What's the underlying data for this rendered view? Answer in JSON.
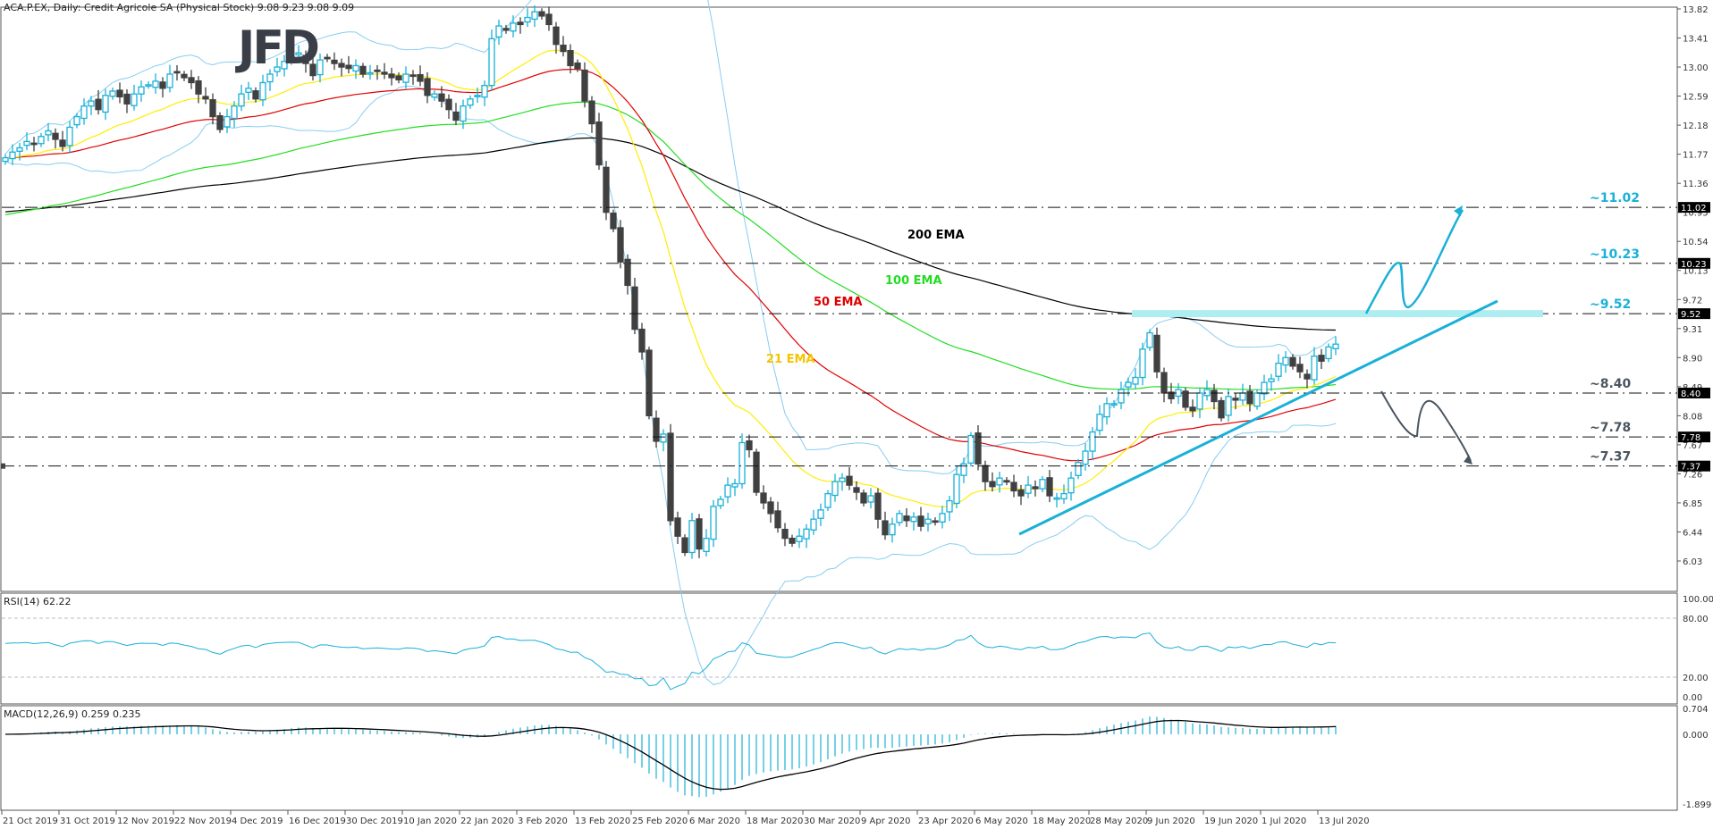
{
  "header": {
    "symbol_line": "ACA.P.EX, Daily:  Credit Agricole SA (Physical Stock)  9.08 9.23 9.08 9.09",
    "rsi_label": "RSI(14) 62.22",
    "macd_label": "MACD(12,26,9) 0.259 0.235",
    "logo": "JFD"
  },
  "colors": {
    "bull": "#1ab0d8",
    "bear": "#404040",
    "ema21": "#ffee00",
    "ema50": "#e00000",
    "ema100": "#22dd22",
    "ema200": "#000000",
    "bollinger": "#87cdf0",
    "annotation_up": "#1ab0d8",
    "annotation_down": "#4a5560",
    "zone": "#aeeef0"
  },
  "chart_data": {
    "type": "candlestick",
    "title": "ACA.P.EX, Daily: Credit Agricole SA (Physical Stock)",
    "ohlc_last": {
      "open": 9.08,
      "high": 9.23,
      "low": 9.08,
      "close": 9.09
    },
    "price_axis": {
      "ticks": [
        13.82,
        13.41,
        13.0,
        12.59,
        12.18,
        11.77,
        11.36,
        10.95,
        10.54,
        10.13,
        9.72,
        9.31,
        8.9,
        8.49,
        8.08,
        7.67,
        7.26,
        6.85,
        6.44,
        6.03
      ],
      "range": [
        5.75,
        13.95
      ]
    },
    "date_axis": [
      "21 Oct 2019",
      "31 Oct 2019",
      "12 Nov 2019",
      "22 Nov 2019",
      "4 Dec 2019",
      "16 Dec 2019",
      "30 Dec 2019",
      "10 Jan 2020",
      "22 Jan 2020",
      "3 Feb 2020",
      "13 Feb 2020",
      "25 Feb 2020",
      "6 Mar 2020",
      "18 Mar 2020",
      "30 Mar 2020",
      "9 Apr 2020",
      "23 Apr 2020",
      "6 May 2020",
      "18 May 2020",
      "28 May 2020",
      "9 Jun 2020",
      "19 Jun 2020",
      "1 Jul 2020",
      "13 Jul 2020"
    ],
    "closes": [
      11.72,
      11.8,
      11.86,
      11.95,
      11.92,
      12.02,
      12.1,
      11.98,
      11.88,
      12.15,
      12.3,
      12.45,
      12.52,
      12.4,
      12.6,
      12.66,
      12.58,
      12.48,
      12.62,
      12.72,
      12.75,
      12.8,
      12.7,
      12.9,
      12.92,
      12.85,
      12.78,
      12.62,
      12.55,
      12.3,
      12.12,
      12.3,
      12.45,
      12.62,
      12.7,
      12.55,
      12.78,
      12.9,
      13.0,
      13.08,
      13.15,
      13.2,
      13.05,
      12.88,
      13.1,
      13.12,
      13.05,
      13.0,
      12.98,
      13.02,
      12.9,
      12.92,
      12.95,
      12.9,
      12.85,
      12.82,
      12.9,
      12.88,
      12.8,
      12.6,
      12.62,
      12.52,
      12.4,
      12.25,
      12.45,
      12.55,
      12.6,
      12.74,
      13.4,
      13.58,
      13.52,
      13.62,
      13.6,
      13.7,
      13.78,
      13.72,
      13.6,
      13.32,
      13.22,
      13.02,
      12.98,
      12.52,
      12.2,
      11.62,
      10.95,
      10.72,
      10.25,
      9.92,
      9.3,
      8.98,
      8.08,
      7.72,
      7.82,
      6.6,
      6.38,
      6.15,
      6.6,
      6.2,
      6.35,
      6.8,
      6.9,
      7.1,
      7.12,
      7.7,
      7.6,
      7.0,
      6.85,
      6.7,
      6.5,
      6.35,
      6.28,
      6.38,
      6.48,
      6.62,
      6.75,
      6.98,
      7.15,
      7.2,
      7.1,
      7.0,
      6.85,
      6.95,
      6.62,
      6.4,
      6.55,
      6.7,
      6.6,
      6.65,
      6.52,
      6.62,
      6.58,
      6.7,
      6.88,
      7.25,
      7.4,
      7.8,
      7.4,
      7.15,
      7.08,
      7.2,
      7.15,
      7.02,
      6.95,
      7.1,
      7.05,
      7.18,
      6.95,
      6.92,
      6.98,
      7.2,
      7.42,
      7.58,
      7.85,
      8.1,
      8.25,
      8.25,
      8.45,
      8.55,
      8.62,
      9.02,
      9.25,
      8.7,
      8.4,
      8.32,
      8.45,
      8.2,
      8.15,
      8.4,
      8.45,
      8.28,
      8.05,
      8.35,
      8.3,
      8.4,
      8.25,
      8.4,
      8.55,
      8.6,
      8.82,
      8.9,
      8.78,
      8.7,
      8.6,
      8.92,
      8.85,
      9.05,
      9.09
    ],
    "levels": [
      {
        "label": "~11.02",
        "value": 11.02,
        "color": "#1ab0d8"
      },
      {
        "label": "~10.23",
        "value": 10.23,
        "color": "#1ab0d8"
      },
      {
        "label": "~9.52",
        "value": 9.52,
        "color": "#1ab0d8"
      },
      {
        "label": "~8.40",
        "value": 8.4,
        "color": "#4a5560"
      },
      {
        "label": "~7.78",
        "value": 7.78,
        "color": "#4a5560"
      },
      {
        "label": "~7.37",
        "value": 7.37,
        "color": "#4a5560"
      }
    ],
    "ema_labels": [
      {
        "label": "200 EMA",
        "color": "#000000"
      },
      {
        "label": "100 EMA",
        "color": "#22dd22"
      },
      {
        "label": "50 EMA",
        "color": "#e00000"
      },
      {
        "label": "21 EMA",
        "color": "#f5c400"
      }
    ],
    "rsi": {
      "ticks": [
        "100.00",
        "80.00",
        "20.00",
        "0.00"
      ],
      "value": 62.22
    },
    "macd": {
      "ticks": [
        "0.704",
        "0.000",
        "-1.899"
      ],
      "main": 0.259,
      "signal": 0.235
    }
  }
}
